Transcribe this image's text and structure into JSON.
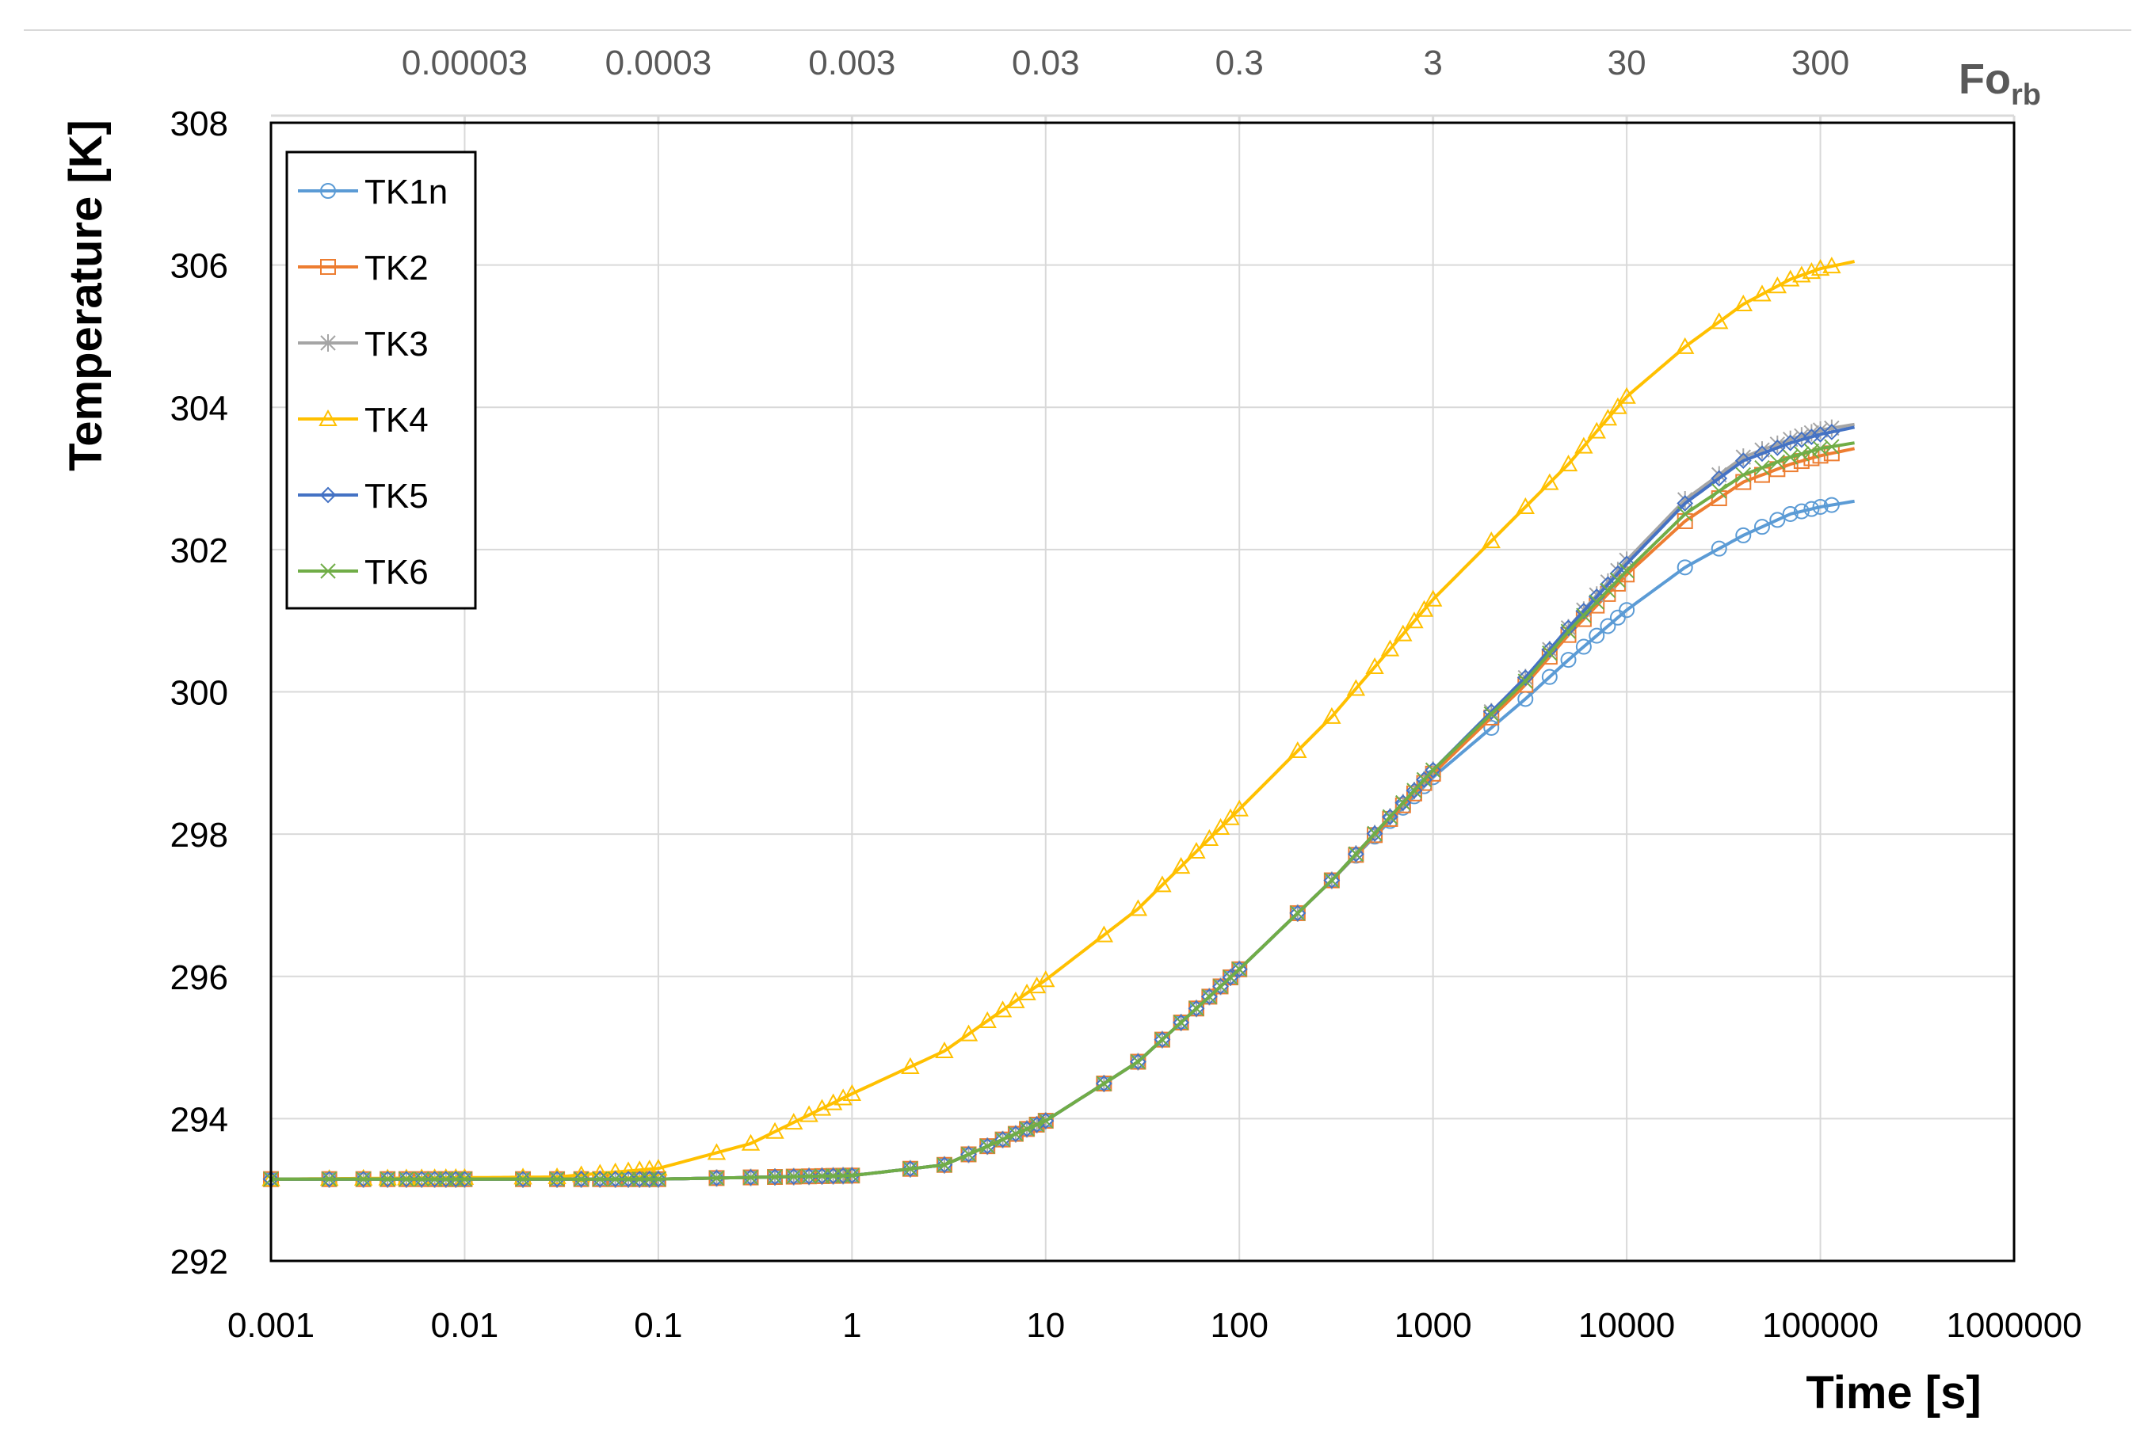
{
  "chart_data": {
    "type": "line",
    "title": "",
    "xlabel": "Time [s]",
    "ylabel": "Temperature [K]",
    "xscale": "log",
    "xlim": [
      0.001,
      1000000
    ],
    "ylim": [
      292,
      308
    ],
    "grid": true,
    "legend_position": "top-left",
    "x_tick_labels": [
      "0.001",
      "0.01",
      "0.1",
      "1",
      "10",
      "100",
      "1000",
      "10000",
      "100000",
      "1000000"
    ],
    "y_tick_labels": [
      "292",
      "294",
      "296",
      "298",
      "300",
      "302",
      "304",
      "306",
      "308"
    ],
    "secondary_x_axis": {
      "label_main": "Fo",
      "label_sub": "rb",
      "tick_labels": [
        "0.00003",
        "0.0003",
        "0.003",
        "0.03",
        "0.3",
        "3",
        "30",
        "300"
      ],
      "tick_times": [
        0.01,
        0.1,
        1,
        10,
        100,
        1000,
        10000,
        100000
      ]
    },
    "series": [
      {
        "name": "TK1n",
        "color": "#5B9BD5",
        "marker": "circle",
        "points": [
          [
            0.001,
            293.15
          ],
          [
            0.1,
            293.15
          ],
          [
            1,
            293.2
          ],
          [
            3,
            293.35
          ],
          [
            10,
            293.97
          ],
          [
            30,
            294.8
          ],
          [
            100,
            296.1
          ],
          [
            300,
            297.35
          ],
          [
            1000,
            298.8
          ],
          [
            3000,
            299.9
          ],
          [
            5000,
            300.45
          ],
          [
            10000,
            301.15
          ],
          [
            20000,
            301.75
          ],
          [
            40000,
            302.2
          ],
          [
            70000,
            302.5
          ],
          [
            100000,
            302.6
          ],
          [
            150000,
            302.68
          ]
        ]
      },
      {
        "name": "TK2",
        "color": "#ED7D31",
        "marker": "square",
        "points": [
          [
            0.001,
            293.15
          ],
          [
            0.1,
            293.15
          ],
          [
            1,
            293.2
          ],
          [
            3,
            293.35
          ],
          [
            10,
            293.97
          ],
          [
            30,
            294.8
          ],
          [
            100,
            296.1
          ],
          [
            300,
            297.35
          ],
          [
            1000,
            298.85
          ],
          [
            3000,
            300.1
          ],
          [
            5000,
            300.8
          ],
          [
            10000,
            301.65
          ],
          [
            20000,
            302.4
          ],
          [
            40000,
            302.95
          ],
          [
            70000,
            303.2
          ],
          [
            100000,
            303.32
          ],
          [
            150000,
            303.42
          ]
        ]
      },
      {
        "name": "TK3",
        "color": "#A5A5A5",
        "marker": "star",
        "points": [
          [
            0.001,
            293.15
          ],
          [
            0.1,
            293.15
          ],
          [
            1,
            293.2
          ],
          [
            3,
            293.35
          ],
          [
            10,
            293.97
          ],
          [
            30,
            294.8
          ],
          [
            100,
            296.1
          ],
          [
            300,
            297.35
          ],
          [
            1000,
            298.9
          ],
          [
            3000,
            300.2
          ],
          [
            5000,
            300.9
          ],
          [
            10000,
            301.85
          ],
          [
            20000,
            302.7
          ],
          [
            40000,
            303.3
          ],
          [
            70000,
            303.55
          ],
          [
            100000,
            303.68
          ],
          [
            150000,
            303.76
          ]
        ]
      },
      {
        "name": "TK4",
        "color": "#FFC000",
        "marker": "triangle",
        "points": [
          [
            0.001,
            293.15
          ],
          [
            0.03,
            293.18
          ],
          [
            0.1,
            293.3
          ],
          [
            0.3,
            293.65
          ],
          [
            1,
            294.35
          ],
          [
            3,
            294.95
          ],
          [
            10,
            295.95
          ],
          [
            30,
            296.95
          ],
          [
            100,
            298.35
          ],
          [
            300,
            299.65
          ],
          [
            1000,
            301.3
          ],
          [
            3000,
            302.6
          ],
          [
            5000,
            303.2
          ],
          [
            10000,
            304.15
          ],
          [
            20000,
            304.85
          ],
          [
            40000,
            305.45
          ],
          [
            70000,
            305.8
          ],
          [
            100000,
            305.95
          ],
          [
            150000,
            306.05
          ]
        ]
      },
      {
        "name": "TK5",
        "color": "#4472C4",
        "marker": "diamond",
        "points": [
          [
            0.001,
            293.15
          ],
          [
            0.1,
            293.15
          ],
          [
            1,
            293.2
          ],
          [
            3,
            293.35
          ],
          [
            10,
            293.97
          ],
          [
            30,
            294.8
          ],
          [
            100,
            296.1
          ],
          [
            300,
            297.35
          ],
          [
            1000,
            298.9
          ],
          [
            3000,
            300.2
          ],
          [
            5000,
            300.9
          ],
          [
            10000,
            301.8
          ],
          [
            20000,
            302.65
          ],
          [
            40000,
            303.25
          ],
          [
            70000,
            303.5
          ],
          [
            100000,
            303.62
          ],
          [
            150000,
            303.72
          ]
        ]
      },
      {
        "name": "TK6",
        "color": "#70AD47",
        "marker": "x",
        "points": [
          [
            0.001,
            293.15
          ],
          [
            0.1,
            293.15
          ],
          [
            1,
            293.2
          ],
          [
            3,
            293.35
          ],
          [
            10,
            293.97
          ],
          [
            30,
            294.8
          ],
          [
            100,
            296.1
          ],
          [
            300,
            297.35
          ],
          [
            1000,
            298.9
          ],
          [
            3000,
            300.15
          ],
          [
            5000,
            300.85
          ],
          [
            10000,
            301.7
          ],
          [
            20000,
            302.5
          ],
          [
            40000,
            303.05
          ],
          [
            70000,
            303.3
          ],
          [
            100000,
            303.42
          ],
          [
            150000,
            303.5
          ]
        ]
      }
    ]
  }
}
